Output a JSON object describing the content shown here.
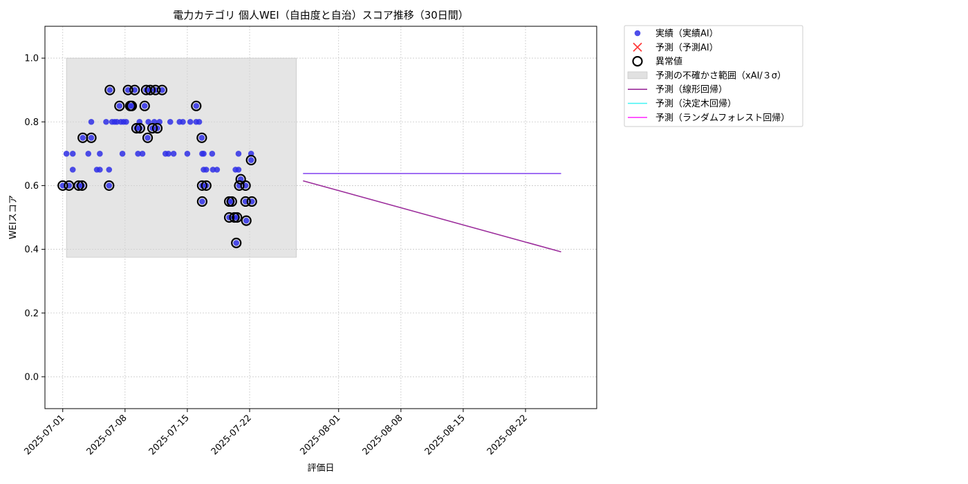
{
  "chart_data": {
    "type": "scatter",
    "title": "電力カテゴリ 個人WEI（自由度と自治）スコア推移（30日間）",
    "xlabel": "評価日",
    "ylabel": "WEIスコア",
    "xlim": [
      "2025-06-29",
      "2025-08-30"
    ],
    "ylim": [
      -0.1,
      1.1
    ],
    "x_ticks": [
      "2025-07-01",
      "2025-07-08",
      "2025-07-15",
      "2025-07-22",
      "2025-08-01",
      "2025-08-08",
      "2025-08-15",
      "2025-08-22"
    ],
    "y_ticks": [
      "0.0",
      "0.2",
      "0.4",
      "0.6",
      "0.8",
      "1.0"
    ],
    "grid": true,
    "legend_position": "outside-top-right",
    "colors": {
      "actual": "#2f2fe6",
      "predicted_ai": "#ff3b3b",
      "anomaly": "#000000",
      "uncertainty": "#d9d9d9",
      "linear": "#9b2c9b",
      "tree": "#3ff4f4",
      "forest": "#ff33ff",
      "combined_line": "#8a4df0"
    },
    "legend": [
      {
        "key": "actual",
        "label": "実績（実績AI）",
        "marker": "dot"
      },
      {
        "key": "predicted_ai",
        "label": "予測（予測AI）",
        "marker": "x"
      },
      {
        "key": "anomaly",
        "label": "異常値",
        "marker": "ring"
      },
      {
        "key": "uncertainty",
        "label": "予測の不確かさ範囲（xAI/３σ）",
        "marker": "box"
      },
      {
        "key": "linear",
        "label": "予測（線形回帰）",
        "marker": "line"
      },
      {
        "key": "tree",
        "label": "予測（決定木回帰）",
        "marker": "line"
      },
      {
        "key": "forest",
        "label": "予測（ランダムフォレスト回帰）",
        "marker": "line"
      }
    ],
    "uncertainty_band": {
      "x_start": "2025-07-01T10:00",
      "x_end": "2025-07-27T06:00",
      "y_low": 0.375,
      "y_high": 1.0
    },
    "actual_points": [
      {
        "x": "2025-07-01T00:00",
        "y": 0.6
      },
      {
        "x": "2025-07-01T10:00",
        "y": 0.7
      },
      {
        "x": "2025-07-01T17:00",
        "y": 0.6
      },
      {
        "x": "2025-07-02T03:00",
        "y": 0.65
      },
      {
        "x": "2025-07-02T03:00",
        "y": 0.7
      },
      {
        "x": "2025-07-02T19:00",
        "y": 0.6
      },
      {
        "x": "2025-07-03T04:00",
        "y": 0.6
      },
      {
        "x": "2025-07-03T06:00",
        "y": 0.75
      },
      {
        "x": "2025-07-03T21:00",
        "y": 0.7
      },
      {
        "x": "2025-07-04T05:00",
        "y": 0.75
      },
      {
        "x": "2025-07-04T05:00",
        "y": 0.8
      },
      {
        "x": "2025-07-04T20:00",
        "y": 0.65
      },
      {
        "x": "2025-07-05T04:00",
        "y": 0.65
      },
      {
        "x": "2025-07-05T04:00",
        "y": 0.7
      },
      {
        "x": "2025-07-05T21:00",
        "y": 0.8
      },
      {
        "x": "2025-07-06T05:00",
        "y": 0.6
      },
      {
        "x": "2025-07-06T05:00",
        "y": 0.65
      },
      {
        "x": "2025-07-06T07:00",
        "y": 0.9
      },
      {
        "x": "2025-07-06T13:00",
        "y": 0.8
      },
      {
        "x": "2025-07-06T20:00",
        "y": 0.8
      },
      {
        "x": "2025-07-07T02:00",
        "y": 0.8
      },
      {
        "x": "2025-07-07T09:00",
        "y": 0.85
      },
      {
        "x": "2025-07-07T13:00",
        "y": 0.8
      },
      {
        "x": "2025-07-07T17:00",
        "y": 0.7
      },
      {
        "x": "2025-07-07T20:00",
        "y": 0.8
      },
      {
        "x": "2025-07-08T03:00",
        "y": 0.8
      },
      {
        "x": "2025-07-08T08:00",
        "y": 0.9
      },
      {
        "x": "2025-07-08T14:00",
        "y": 0.85
      },
      {
        "x": "2025-07-08T18:00",
        "y": 0.85
      },
      {
        "x": "2025-07-09T02:00",
        "y": 0.9
      },
      {
        "x": "2025-07-09T07:00",
        "y": 0.78
      },
      {
        "x": "2025-07-09T11:00",
        "y": 0.7
      },
      {
        "x": "2025-07-09T15:00",
        "y": 0.8
      },
      {
        "x": "2025-07-09T16:00",
        "y": 0.78
      },
      {
        "x": "2025-07-09T23:00",
        "y": 0.7
      },
      {
        "x": "2025-07-10T05:00",
        "y": 0.85
      },
      {
        "x": "2025-07-10T09:00",
        "y": 0.9
      },
      {
        "x": "2025-07-10T13:00",
        "y": 0.75
      },
      {
        "x": "2025-07-10T15:00",
        "y": 0.8
      },
      {
        "x": "2025-07-10T20:00",
        "y": 0.9
      },
      {
        "x": "2025-07-11T02:00",
        "y": 0.78
      },
      {
        "x": "2025-07-11T07:00",
        "y": 0.8
      },
      {
        "x": "2025-07-11T10:00",
        "y": 0.9
      },
      {
        "x": "2025-07-11T15:00",
        "y": 0.78
      },
      {
        "x": "2025-07-11T21:00",
        "y": 0.8
      },
      {
        "x": "2025-07-12T04:00",
        "y": 0.9
      },
      {
        "x": "2025-07-12T13:00",
        "y": 0.7
      },
      {
        "x": "2025-07-12T21:00",
        "y": 0.7
      },
      {
        "x": "2025-07-13T02:00",
        "y": 0.8
      },
      {
        "x": "2025-07-13T11:00",
        "y": 0.7
      },
      {
        "x": "2025-07-14T03:00",
        "y": 0.8
      },
      {
        "x": "2025-07-14T12:00",
        "y": 0.8
      },
      {
        "x": "2025-07-15T00:00",
        "y": 0.7
      },
      {
        "x": "2025-07-15T08:00",
        "y": 0.8
      },
      {
        "x": "2025-07-16T00:00",
        "y": 0.85
      },
      {
        "x": "2025-07-16T00:00",
        "y": 0.8
      },
      {
        "x": "2025-07-16T08:00",
        "y": 0.8
      },
      {
        "x": "2025-07-16T15:00",
        "y": 0.75
      },
      {
        "x": "2025-07-16T16:00",
        "y": 0.7
      },
      {
        "x": "2025-07-16T16:00",
        "y": 0.6
      },
      {
        "x": "2025-07-16T16:00",
        "y": 0.55
      },
      {
        "x": "2025-07-16T20:00",
        "y": 0.7
      },
      {
        "x": "2025-07-16T20:00",
        "y": 0.65
      },
      {
        "x": "2025-07-17T03:00",
        "y": 0.6
      },
      {
        "x": "2025-07-17T03:00",
        "y": 0.65
      },
      {
        "x": "2025-07-17T19:00",
        "y": 0.7
      },
      {
        "x": "2025-07-17T21:00",
        "y": 0.65
      },
      {
        "x": "2025-07-18T08:00",
        "y": 0.65
      },
      {
        "x": "2025-07-19T17:00",
        "y": 0.55
      },
      {
        "x": "2025-07-19T17:00",
        "y": 0.5
      },
      {
        "x": "2025-07-20T00:00",
        "y": 0.55
      },
      {
        "x": "2025-07-20T07:00",
        "y": 0.5
      },
      {
        "x": "2025-07-20T10:00",
        "y": 0.65
      },
      {
        "x": "2025-07-20T12:00",
        "y": 0.42
      },
      {
        "x": "2025-07-20T14:00",
        "y": 0.5
      },
      {
        "x": "2025-07-20T18:00",
        "y": 0.65
      },
      {
        "x": "2025-07-20T18:00",
        "y": 0.7
      },
      {
        "x": "2025-07-20T20:00",
        "y": 0.6
      },
      {
        "x": "2025-07-21T00:00",
        "y": 0.62
      },
      {
        "x": "2025-07-21T13:00",
        "y": 0.6
      },
      {
        "x": "2025-07-21T13:00",
        "y": 0.55
      },
      {
        "x": "2025-07-21T15:00",
        "y": 0.49
      },
      {
        "x": "2025-07-22T04:00",
        "y": 0.7
      },
      {
        "x": "2025-07-22T04:00",
        "y": 0.68
      },
      {
        "x": "2025-07-22T06:00",
        "y": 0.55
      }
    ],
    "anomaly_points": [
      {
        "x": "2025-07-01T00:00",
        "y": 0.6
      },
      {
        "x": "2025-07-01T17:00",
        "y": 0.6
      },
      {
        "x": "2025-07-02T19:00",
        "y": 0.6
      },
      {
        "x": "2025-07-03T04:00",
        "y": 0.6
      },
      {
        "x": "2025-07-03T06:00",
        "y": 0.75
      },
      {
        "x": "2025-07-04T05:00",
        "y": 0.75
      },
      {
        "x": "2025-07-06T05:00",
        "y": 0.6
      },
      {
        "x": "2025-07-06T07:00",
        "y": 0.9
      },
      {
        "x": "2025-07-07T09:00",
        "y": 0.85
      },
      {
        "x": "2025-07-08T08:00",
        "y": 0.9
      },
      {
        "x": "2025-07-08T14:00",
        "y": 0.85
      },
      {
        "x": "2025-07-08T18:00",
        "y": 0.85
      },
      {
        "x": "2025-07-09T02:00",
        "y": 0.9
      },
      {
        "x": "2025-07-09T07:00",
        "y": 0.78
      },
      {
        "x": "2025-07-09T16:00",
        "y": 0.78
      },
      {
        "x": "2025-07-10T05:00",
        "y": 0.85
      },
      {
        "x": "2025-07-10T09:00",
        "y": 0.9
      },
      {
        "x": "2025-07-10T13:00",
        "y": 0.75
      },
      {
        "x": "2025-07-10T20:00",
        "y": 0.9
      },
      {
        "x": "2025-07-11T02:00",
        "y": 0.78
      },
      {
        "x": "2025-07-11T10:00",
        "y": 0.9
      },
      {
        "x": "2025-07-11T15:00",
        "y": 0.78
      },
      {
        "x": "2025-07-12T04:00",
        "y": 0.9
      },
      {
        "x": "2025-07-16T00:00",
        "y": 0.85
      },
      {
        "x": "2025-07-16T15:00",
        "y": 0.75
      },
      {
        "x": "2025-07-16T16:00",
        "y": 0.6
      },
      {
        "x": "2025-07-16T16:00",
        "y": 0.55
      },
      {
        "x": "2025-07-17T03:00",
        "y": 0.6
      },
      {
        "x": "2025-07-19T17:00",
        "y": 0.55
      },
      {
        "x": "2025-07-19T17:00",
        "y": 0.5
      },
      {
        "x": "2025-07-20T00:00",
        "y": 0.55
      },
      {
        "x": "2025-07-20T07:00",
        "y": 0.5
      },
      {
        "x": "2025-07-20T12:00",
        "y": 0.42
      },
      {
        "x": "2025-07-20T14:00",
        "y": 0.5
      },
      {
        "x": "2025-07-20T20:00",
        "y": 0.6
      },
      {
        "x": "2025-07-21T00:00",
        "y": 0.62
      },
      {
        "x": "2025-07-21T13:00",
        "y": 0.6
      },
      {
        "x": "2025-07-21T13:00",
        "y": 0.55
      },
      {
        "x": "2025-07-21T15:00",
        "y": 0.49
      },
      {
        "x": "2025-07-22T04:00",
        "y": 0.68
      },
      {
        "x": "2025-07-22T06:00",
        "y": 0.55
      }
    ],
    "prediction_lines": [
      {
        "key": "combined_line",
        "x": [
          "2025-07-28",
          "2025-08-26"
        ],
        "y": [
          0.638,
          0.638
        ]
      },
      {
        "key": "linear",
        "x": [
          "2025-07-28",
          "2025-08-26"
        ],
        "y": [
          0.615,
          0.392
        ]
      }
    ]
  }
}
